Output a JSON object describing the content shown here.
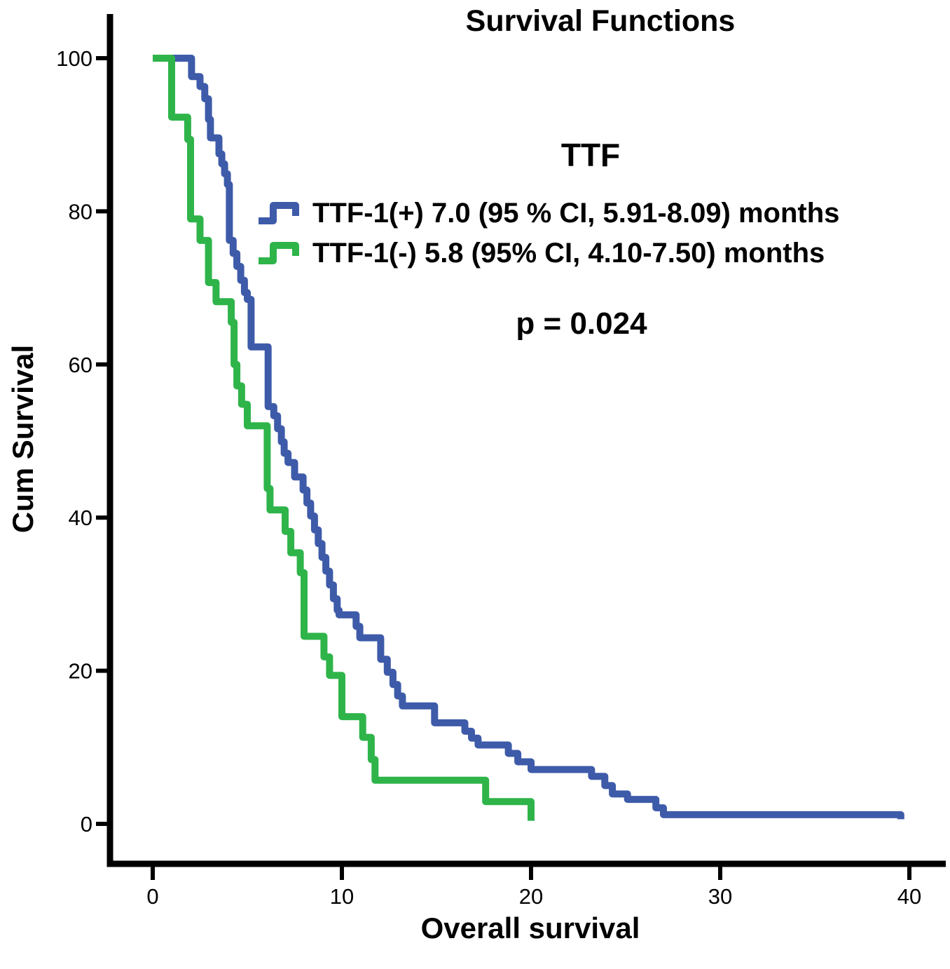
{
  "title": "Survival Functions",
  "legend": {
    "header": "TTF",
    "items": [
      {
        "series": "TTF-1(+)",
        "label": "TTF-1(+) 7.0 (95 % CI, 5.91-8.09) months",
        "color": "#3E5BA9",
        "median_months": 7.0,
        "ci_95": "5.91-8.09"
      },
      {
        "series": "TTF-1(-)",
        "label": "TTF-1(-) 5.8 (95% CI, 4.10-7.50) months",
        "color": "#2FB44A",
        "median_months": 5.8,
        "ci_95": "4.10-7.50"
      }
    ],
    "p_value_label": "p = 0.024"
  },
  "chart_data": {
    "type": "line",
    "subtype": "kaplan-meier-step",
    "title": "Survival Functions",
    "xlabel": "Overall survival",
    "ylabel": "Cum Survival",
    "xlim": [
      0,
      40
    ],
    "ylim": [
      0,
      100
    ],
    "x_ticks": [
      0,
      10,
      20,
      30,
      40
    ],
    "y_ticks": [
      0,
      20,
      40,
      60,
      80,
      100
    ],
    "grid": false,
    "legend_position": "upper-right-inside",
    "p_value": 0.024,
    "axis_color": "#000000",
    "series": [
      {
        "name": "TTF-1(+)",
        "color": "#3E5BA9",
        "points": [
          [
            0,
            100
          ],
          [
            2.05,
            97.6
          ],
          [
            2.5,
            96.3
          ],
          [
            2.75,
            94.7
          ],
          [
            2.95,
            92
          ],
          [
            3.05,
            89.6
          ],
          [
            3.5,
            87.5
          ],
          [
            3.65,
            86.2
          ],
          [
            3.8,
            84.9
          ],
          [
            3.95,
            83.5
          ],
          [
            4.05,
            76.2
          ],
          [
            4.25,
            74.5
          ],
          [
            4.45,
            72.8
          ],
          [
            4.65,
            71
          ],
          [
            4.85,
            69.4
          ],
          [
            5,
            68.5
          ],
          [
            5.2,
            62.3
          ],
          [
            6.1,
            54.5
          ],
          [
            6.4,
            53.3
          ],
          [
            6.6,
            51.6
          ],
          [
            6.8,
            49.9
          ],
          [
            6.95,
            48.4
          ],
          [
            7.15,
            47.2
          ],
          [
            7.5,
            45.3
          ],
          [
            7.95,
            43.6
          ],
          [
            8.15,
            41.9
          ],
          [
            8.35,
            40.2
          ],
          [
            8.55,
            38.4
          ],
          [
            8.75,
            36.6
          ],
          [
            8.95,
            34.8
          ],
          [
            9.15,
            33
          ],
          [
            9.35,
            31.2
          ],
          [
            9.55,
            29.4
          ],
          [
            9.75,
            27.9
          ],
          [
            9.85,
            27.3
          ],
          [
            10.75,
            25.8
          ],
          [
            10.95,
            24.3
          ],
          [
            12.05,
            21.5
          ],
          [
            12.4,
            19.8
          ],
          [
            12.7,
            18.2
          ],
          [
            12.95,
            16.7
          ],
          [
            13.2,
            15.4
          ],
          [
            14.9,
            13.2
          ],
          [
            16.5,
            12.1
          ],
          [
            16.85,
            11.2
          ],
          [
            17.2,
            10.3
          ],
          [
            18.8,
            9.2
          ],
          [
            19.3,
            8.1
          ],
          [
            20,
            7.1
          ],
          [
            23.2,
            6.2
          ],
          [
            23.9,
            5
          ],
          [
            24.3,
            3.9
          ],
          [
            25.1,
            3.2
          ],
          [
            26.6,
            2.1
          ],
          [
            27,
            1.2
          ],
          [
            39.55,
            0.6
          ]
        ]
      },
      {
        "name": "TTF-1(-)",
        "color": "#2FB44A",
        "points": [
          [
            0,
            100
          ],
          [
            1,
            92.3
          ],
          [
            1.85,
            89.4
          ],
          [
            2,
            79
          ],
          [
            2.5,
            76.2
          ],
          [
            2.95,
            70.7
          ],
          [
            3.35,
            68.2
          ],
          [
            4.15,
            65.5
          ],
          [
            4.3,
            60
          ],
          [
            4.45,
            57.2
          ],
          [
            4.7,
            54.8
          ],
          [
            5,
            52
          ],
          [
            6.05,
            43.8
          ],
          [
            6.2,
            41
          ],
          [
            7,
            38.2
          ],
          [
            7.3,
            35.4
          ],
          [
            7.8,
            32.8
          ],
          [
            8,
            24.5
          ],
          [
            9.05,
            21.8
          ],
          [
            9.35,
            19.4
          ],
          [
            10,
            14
          ],
          [
            11.1,
            11.3
          ],
          [
            11.55,
            8.4
          ],
          [
            11.75,
            5.7
          ],
          [
            17.6,
            2.9
          ],
          [
            20,
            0.4
          ]
        ]
      }
    ]
  }
}
